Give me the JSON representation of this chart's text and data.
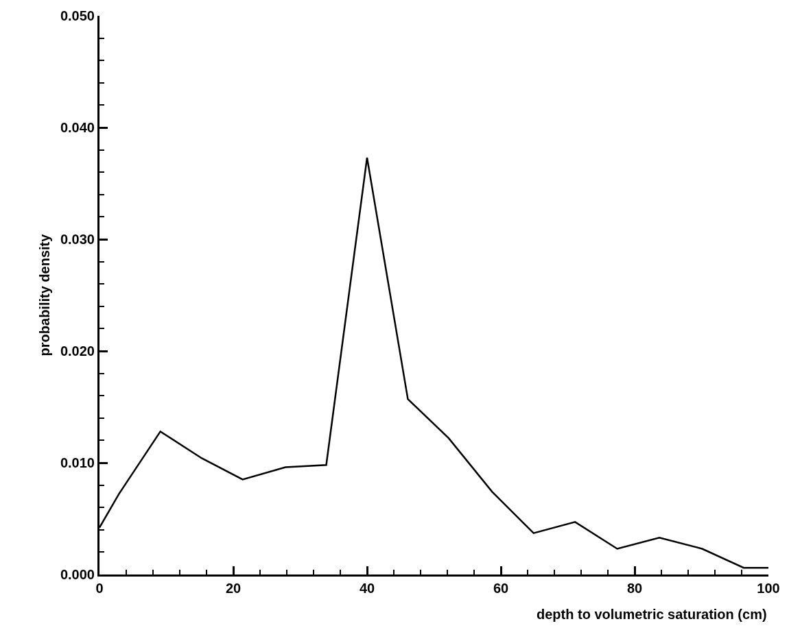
{
  "chart_data": {
    "type": "line",
    "xlabel": "depth to volumetric saturation (cm)",
    "ylabel": "probability density",
    "x": [
      0,
      2.9,
      9.1,
      15.3,
      21.4,
      27.8,
      33.9,
      40,
      46.1,
      52.2,
      58.7,
      64.9,
      71.1,
      77.4,
      83.7,
      90.1,
      96.3,
      100
    ],
    "series": [
      {
        "color": "#000000",
        "values": [
          0.0042,
          0.0072,
          0.0128,
          0.0104,
          0.0085,
          0.0096,
          0.0098,
          0.0373,
          0.0157,
          0.0122,
          0.0074,
          0.0037,
          0.0047,
          0.0023,
          0.0033,
          0.0023,
          0.0006,
          0.0006
        ]
      }
    ],
    "xlim": [
      0,
      100
    ],
    "ylim": [
      0,
      0.05
    ],
    "xticks": [
      0,
      {
        "value": 4,
        "label": null
      },
      {
        "value": 8,
        "label": null
      },
      {
        "value": 12,
        "label": null
      },
      {
        "value": 16,
        "label": null
      },
      20,
      {
        "value": 24,
        "label": null
      },
      {
        "value": 28,
        "label": null
      },
      {
        "value": 32,
        "label": null
      },
      {
        "value": 36,
        "label": null
      },
      40,
      {
        "value": 44,
        "label": null
      },
      {
        "value": 48,
        "label": null
      },
      {
        "value": 52,
        "label": null
      },
      {
        "value": 56,
        "label": null
      },
      60,
      {
        "value": 64,
        "label": null
      },
      {
        "value": 68,
        "label": null
      },
      {
        "value": 72,
        "label": null
      },
      {
        "value": 76,
        "label": null
      },
      80,
      {
        "value": 84,
        "label": null
      },
      {
        "value": 88,
        "label": null
      },
      {
        "value": 92,
        "label": null
      },
      {
        "value": 96,
        "label": null
      },
      100
    ],
    "yticks": [
      {
        "value": 0,
        "label": "0.000"
      },
      {
        "value": 0.002,
        "label": null
      },
      {
        "value": 0.004,
        "label": null
      },
      {
        "value": 0.006,
        "label": null
      },
      {
        "value": 0.008,
        "label": null
      },
      {
        "value": 0.01,
        "label": "0.010"
      },
      {
        "value": 0.012,
        "label": null
      },
      {
        "value": 0.014,
        "label": null
      },
      {
        "value": 0.016,
        "label": null
      },
      {
        "value": 0.018,
        "label": null
      },
      {
        "value": 0.02,
        "label": "0.020"
      },
      {
        "value": 0.022,
        "label": null
      },
      {
        "value": 0.024,
        "label": null
      },
      {
        "value": 0.026,
        "label": null
      },
      {
        "value": 0.028,
        "label": null
      },
      {
        "value": 0.03,
        "label": "0.030"
      },
      {
        "value": 0.032,
        "label": null
      },
      {
        "value": 0.034,
        "label": null
      },
      {
        "value": 0.036,
        "label": null
      },
      {
        "value": 0.038,
        "label": null
      },
      {
        "value": 0.04,
        "label": "0.040"
      },
      {
        "value": 0.042,
        "label": null
      },
      {
        "value": 0.044,
        "label": null
      },
      {
        "value": 0.046,
        "label": null
      },
      {
        "value": 0.048,
        "label": null
      },
      {
        "value": 0.05,
        "label": "0.050"
      }
    ],
    "marker": "none",
    "line_style": "solid"
  }
}
